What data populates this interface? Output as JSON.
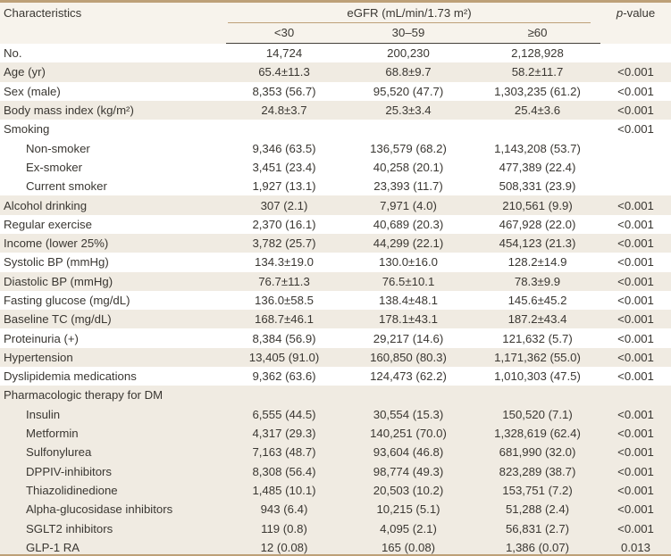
{
  "table": {
    "header": {
      "characteristics": "Characteristics",
      "egfr_group": "eGFR (mL/min/1.73 m²)",
      "subcolumns": [
        "<30",
        "30–59",
        "≥60"
      ],
      "p_value": {
        "italic": "p",
        "rest": "-value"
      }
    },
    "colors": {
      "accent_tan": "#bda078",
      "header_background": "#f7f3ec",
      "row_shade": "#f0ebe2",
      "dark_rule": "#45403a",
      "text": "#3a3732"
    },
    "rows": [
      {
        "label": "No.",
        "indent": false,
        "shaded": false,
        "values": [
          "14,724",
          "200,230",
          "2,128,928"
        ],
        "p": ""
      },
      {
        "label": "Age (yr)",
        "indent": false,
        "shaded": true,
        "values": [
          "65.4±11.3",
          "68.8±9.7",
          "58.2±11.7"
        ],
        "p": "<0.001"
      },
      {
        "label": "Sex (male)",
        "indent": false,
        "shaded": false,
        "values": [
          "8,353 (56.7)",
          "95,520 (47.7)",
          "1,303,235 (61.2)"
        ],
        "p": "<0.001"
      },
      {
        "label": "Body mass index (kg/m²)",
        "indent": false,
        "shaded": true,
        "values": [
          "24.8±3.7",
          "25.3±3.4",
          "25.4±3.6"
        ],
        "p": "<0.001"
      },
      {
        "label": "Smoking",
        "indent": false,
        "shaded": false,
        "values": [
          "",
          "",
          ""
        ],
        "p": "<0.001"
      },
      {
        "label": "Non-smoker",
        "indent": true,
        "shaded": false,
        "values": [
          "9,346 (63.5)",
          "136,579 (68.2)",
          "1,143,208 (53.7)"
        ],
        "p": ""
      },
      {
        "label": "Ex-smoker",
        "indent": true,
        "shaded": false,
        "values": [
          "3,451 (23.4)",
          "40,258 (20.1)",
          "477,389 (22.4)"
        ],
        "p": ""
      },
      {
        "label": "Current smoker",
        "indent": true,
        "shaded": false,
        "values": [
          "1,927 (13.1)",
          "23,393 (11.7)",
          "508,331 (23.9)"
        ],
        "p": ""
      },
      {
        "label": "Alcohol drinking",
        "indent": false,
        "shaded": true,
        "values": [
          "307 (2.1)",
          "7,971 (4.0)",
          "210,561 (9.9)"
        ],
        "p": "<0.001"
      },
      {
        "label": "Regular exercise",
        "indent": false,
        "shaded": false,
        "values": [
          "2,370 (16.1)",
          "40,689 (20.3)",
          "467,928 (22.0)"
        ],
        "p": "<0.001"
      },
      {
        "label": "Income (lower 25%)",
        "indent": false,
        "shaded": true,
        "values": [
          "3,782 (25.7)",
          "44,299 (22.1)",
          "454,123 (21.3)"
        ],
        "p": "<0.001"
      },
      {
        "label": "Systolic BP (mmHg)",
        "indent": false,
        "shaded": false,
        "values": [
          "134.3±19.0",
          "130.0±16.0",
          "128.2±14.9"
        ],
        "p": "<0.001"
      },
      {
        "label": "Diastolic BP (mmHg)",
        "indent": false,
        "shaded": true,
        "values": [
          "76.7±11.3",
          "76.5±10.1",
          "78.3±9.9"
        ],
        "p": "<0.001"
      },
      {
        "label": "Fasting glucose (mg/dL)",
        "indent": false,
        "shaded": false,
        "values": [
          "136.0±58.5",
          "138.4±48.1",
          "145.6±45.2"
        ],
        "p": "<0.001"
      },
      {
        "label": "Baseline TC (mg/dL)",
        "indent": false,
        "shaded": true,
        "values": [
          "168.7±46.1",
          "178.1±43.1",
          "187.2±43.4"
        ],
        "p": "<0.001"
      },
      {
        "label": "Proteinuria (+)",
        "indent": false,
        "shaded": false,
        "values": [
          "8,384 (56.9)",
          "29,217 (14.6)",
          "121,632 (5.7)"
        ],
        "p": "<0.001"
      },
      {
        "label": "Hypertension",
        "indent": false,
        "shaded": true,
        "values": [
          "13,405 (91.0)",
          "160,850 (80.3)",
          "1,171,362 (55.0)"
        ],
        "p": "<0.001"
      },
      {
        "label": "Dyslipidemia medications",
        "indent": false,
        "shaded": false,
        "values": [
          "9,362 (63.6)",
          "124,473 (62.2)",
          "1,010,303 (47.5)"
        ],
        "p": "<0.001"
      },
      {
        "label": "Pharmacologic therapy for DM",
        "indent": false,
        "shaded": true,
        "values": [
          "",
          "",
          ""
        ],
        "p": ""
      },
      {
        "label": "Insulin",
        "indent": true,
        "shaded": true,
        "values": [
          "6,555 (44.5)",
          "30,554 (15.3)",
          "150,520 (7.1)"
        ],
        "p": "<0.001"
      },
      {
        "label": "Metformin",
        "indent": true,
        "shaded": true,
        "values": [
          "4,317 (29.3)",
          "140,251 (70.0)",
          "1,328,619 (62.4)"
        ],
        "p": "<0.001"
      },
      {
        "label": "Sulfonylurea",
        "indent": true,
        "shaded": true,
        "values": [
          "7,163 (48.7)",
          "93,604 (46.8)",
          "681,990 (32.0)"
        ],
        "p": "<0.001"
      },
      {
        "label": "DPPIV-inhibitors",
        "indent": true,
        "shaded": true,
        "values": [
          "8,308 (56.4)",
          "98,774 (49.3)",
          "823,289 (38.7)"
        ],
        "p": "<0.001"
      },
      {
        "label": "Thiazolidinedione",
        "indent": true,
        "shaded": true,
        "values": [
          "1,485 (10.1)",
          "20,503 (10.2)",
          "153,751 (7.2)"
        ],
        "p": "<0.001"
      },
      {
        "label": "Alpha-glucosidase inhibitors",
        "indent": true,
        "shaded": true,
        "values": [
          "943 (6.4)",
          "10,215 (5.1)",
          "51,288 (2.4)"
        ],
        "p": "<0.001"
      },
      {
        "label": "SGLT2 inhibitors",
        "indent": true,
        "shaded": true,
        "values": [
          "119 (0.8)",
          "4,095 (2.1)",
          "56,831 (2.7)"
        ],
        "p": "<0.001"
      },
      {
        "label": "GLP-1 RA",
        "indent": true,
        "shaded": true,
        "values": [
          "12 (0.08)",
          "165 (0.08)",
          "1,386 (0.07)"
        ],
        "p": "0.013"
      }
    ]
  }
}
